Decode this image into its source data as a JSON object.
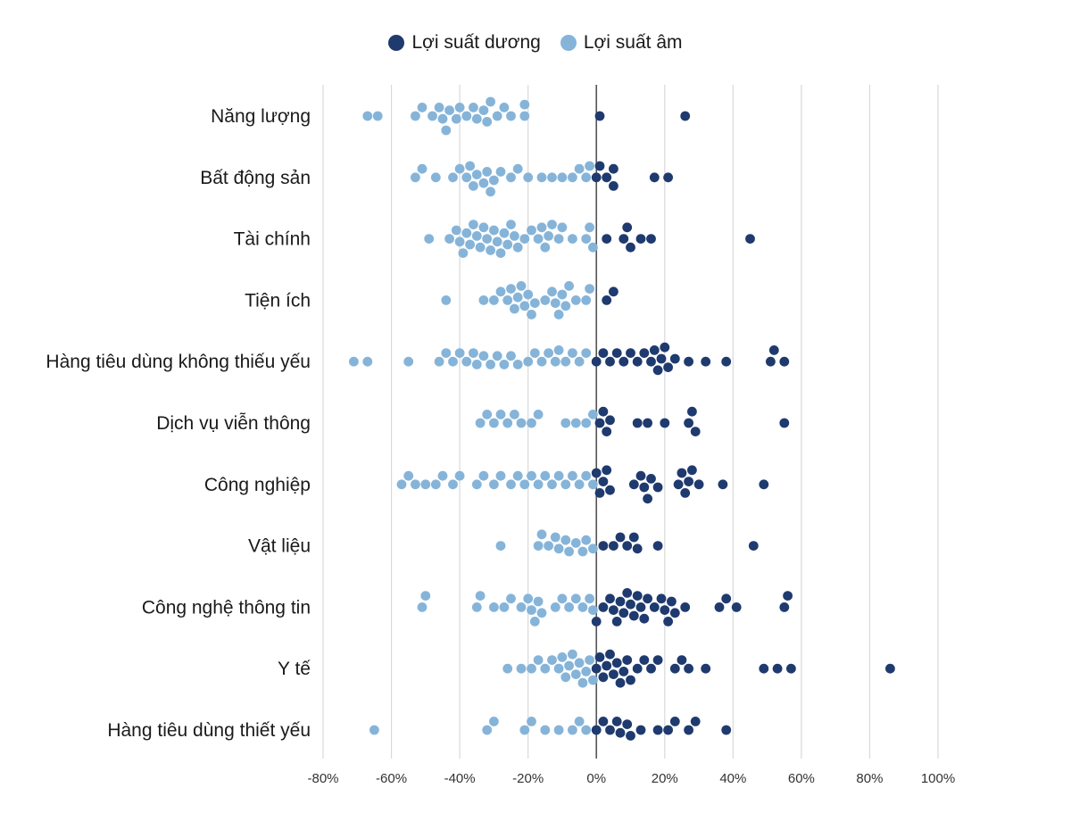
{
  "chart_data": {
    "type": "scatter",
    "subtype": "beeswarm",
    "title": "",
    "xlabel": "",
    "ylabel": "",
    "xlim": [
      -80,
      100
    ],
    "x_ticks": [
      "-80%",
      "-60%",
      "-40%",
      "-20%",
      "0%",
      "20%",
      "40%",
      "60%",
      "80%",
      "100%"
    ],
    "x_tick_values": [
      -80,
      -60,
      -40,
      -20,
      0,
      20,
      40,
      60,
      80,
      100
    ],
    "legend": [
      {
        "name": "Lợi suất dương",
        "color": "#1f3a6e"
      },
      {
        "name": "Lợi suất âm",
        "color": "#86b4d9"
      }
    ],
    "categories": [
      "Năng lượng",
      "Bất động sản",
      "Tài chính",
      "Tiện ích",
      "Hàng tiêu dùng không thiếu yếu",
      "Dịch vụ viễn thông",
      "Công nghiệp",
      "Vật liệu",
      "Công nghệ thông tin",
      "Y tế",
      "Hàng tiêu dùng thiết yếu"
    ],
    "series": [
      {
        "name": "Lợi suất âm",
        "values": [
          [
            -67,
            -64,
            -53,
            -51,
            -48,
            -46,
            -45,
            -44,
            -43,
            -41,
            -40,
            -38,
            -36,
            -35,
            -33,
            -32,
            -31,
            -29,
            -27,
            -25,
            -21,
            -21
          ],
          [
            -53,
            -51,
            -47,
            -42,
            -40,
            -38,
            -37,
            -36,
            -35,
            -33,
            -32,
            -31,
            -30,
            -28,
            -25,
            -23,
            -20,
            -16,
            -13,
            -10,
            -7,
            -5,
            -3,
            -2
          ],
          [
            -49,
            -43,
            -41,
            -40,
            -39,
            -38,
            -37,
            -36,
            -35,
            -34,
            -33,
            -32,
            -31,
            -30,
            -29,
            -28,
            -27,
            -26,
            -25,
            -24,
            -23,
            -21,
            -19,
            -17,
            -16,
            -15,
            -14,
            -13,
            -11,
            -10,
            -7,
            -3,
            -2,
            -1
          ],
          [
            -44,
            -33,
            -30,
            -28,
            -26,
            -25,
            -24,
            -23,
            -22,
            -21,
            -20,
            -19,
            -18,
            -15,
            -13,
            -12,
            -11,
            -10,
            -9,
            -8,
            -6,
            -3,
            -2
          ],
          [
            -71,
            -67,
            -55,
            -46,
            -44,
            -42,
            -40,
            -38,
            -36,
            -35,
            -33,
            -31,
            -29,
            -27,
            -25,
            -23,
            -20,
            -18,
            -16,
            -14,
            -12,
            -11,
            -9,
            -7,
            -5,
            -3
          ],
          [
            -34,
            -32,
            -30,
            -28,
            -26,
            -24,
            -22,
            -19,
            -17,
            -9,
            -6,
            -3,
            -1
          ],
          [
            -57,
            -55,
            -53,
            -50,
            -47,
            -45,
            -42,
            -40,
            -35,
            -33,
            -30,
            -28,
            -25,
            -23,
            -21,
            -19,
            -17,
            -15,
            -13,
            -11,
            -9,
            -7,
            -5,
            -3,
            -1
          ],
          [
            -28,
            -17,
            -16,
            -14,
            -12,
            -11,
            -9,
            -8,
            -6,
            -4,
            -3,
            -1
          ],
          [
            -51,
            -50,
            -35,
            -34,
            -30,
            -27,
            -25,
            -22,
            -20,
            -19,
            -18,
            -17,
            -16,
            -12,
            -10,
            -8,
            -6,
            -4,
            -2,
            -1
          ],
          [
            -26,
            -22,
            -19,
            -17,
            -15,
            -13,
            -11,
            -10,
            -9,
            -8,
            -7,
            -6,
            -5,
            -4,
            -3,
            -2,
            -1
          ],
          [
            -65,
            -32,
            -30,
            -21,
            -19,
            -15,
            -11,
            -7,
            -5,
            -3
          ]
        ]
      },
      {
        "name": "Lợi suất dương",
        "values": [
          [
            1,
            26
          ],
          [
            0,
            1,
            3,
            5,
            5,
            17,
            21
          ],
          [
            3,
            8,
            9,
            10,
            13,
            16,
            45
          ],
          [
            3,
            5
          ],
          [
            0,
            2,
            4,
            6,
            8,
            10,
            12,
            14,
            16,
            17,
            18,
            19,
            20,
            21,
            23,
            27,
            32,
            38,
            51,
            52,
            55
          ],
          [
            1,
            2,
            3,
            4,
            12,
            15,
            20,
            27,
            28,
            29,
            55
          ],
          [
            0,
            1,
            2,
            3,
            4,
            11,
            13,
            14,
            15,
            16,
            18,
            24,
            25,
            26,
            27,
            28,
            30,
            37,
            49
          ],
          [
            2,
            5,
            7,
            9,
            11,
            12,
            18,
            46
          ],
          [
            0,
            2,
            4,
            5,
            6,
            7,
            8,
            9,
            10,
            11,
            12,
            13,
            14,
            15,
            17,
            19,
            20,
            21,
            22,
            23,
            26,
            36,
            38,
            41,
            55,
            56
          ],
          [
            0,
            1,
            2,
            3,
            4,
            5,
            6,
            7,
            8,
            9,
            10,
            12,
            14,
            16,
            18,
            23,
            25,
            27,
            32,
            49,
            53,
            57,
            86
          ],
          [
            0,
            2,
            4,
            6,
            7,
            9,
            10,
            13,
            18,
            21,
            23,
            27,
            29,
            38
          ]
        ]
      }
    ]
  }
}
